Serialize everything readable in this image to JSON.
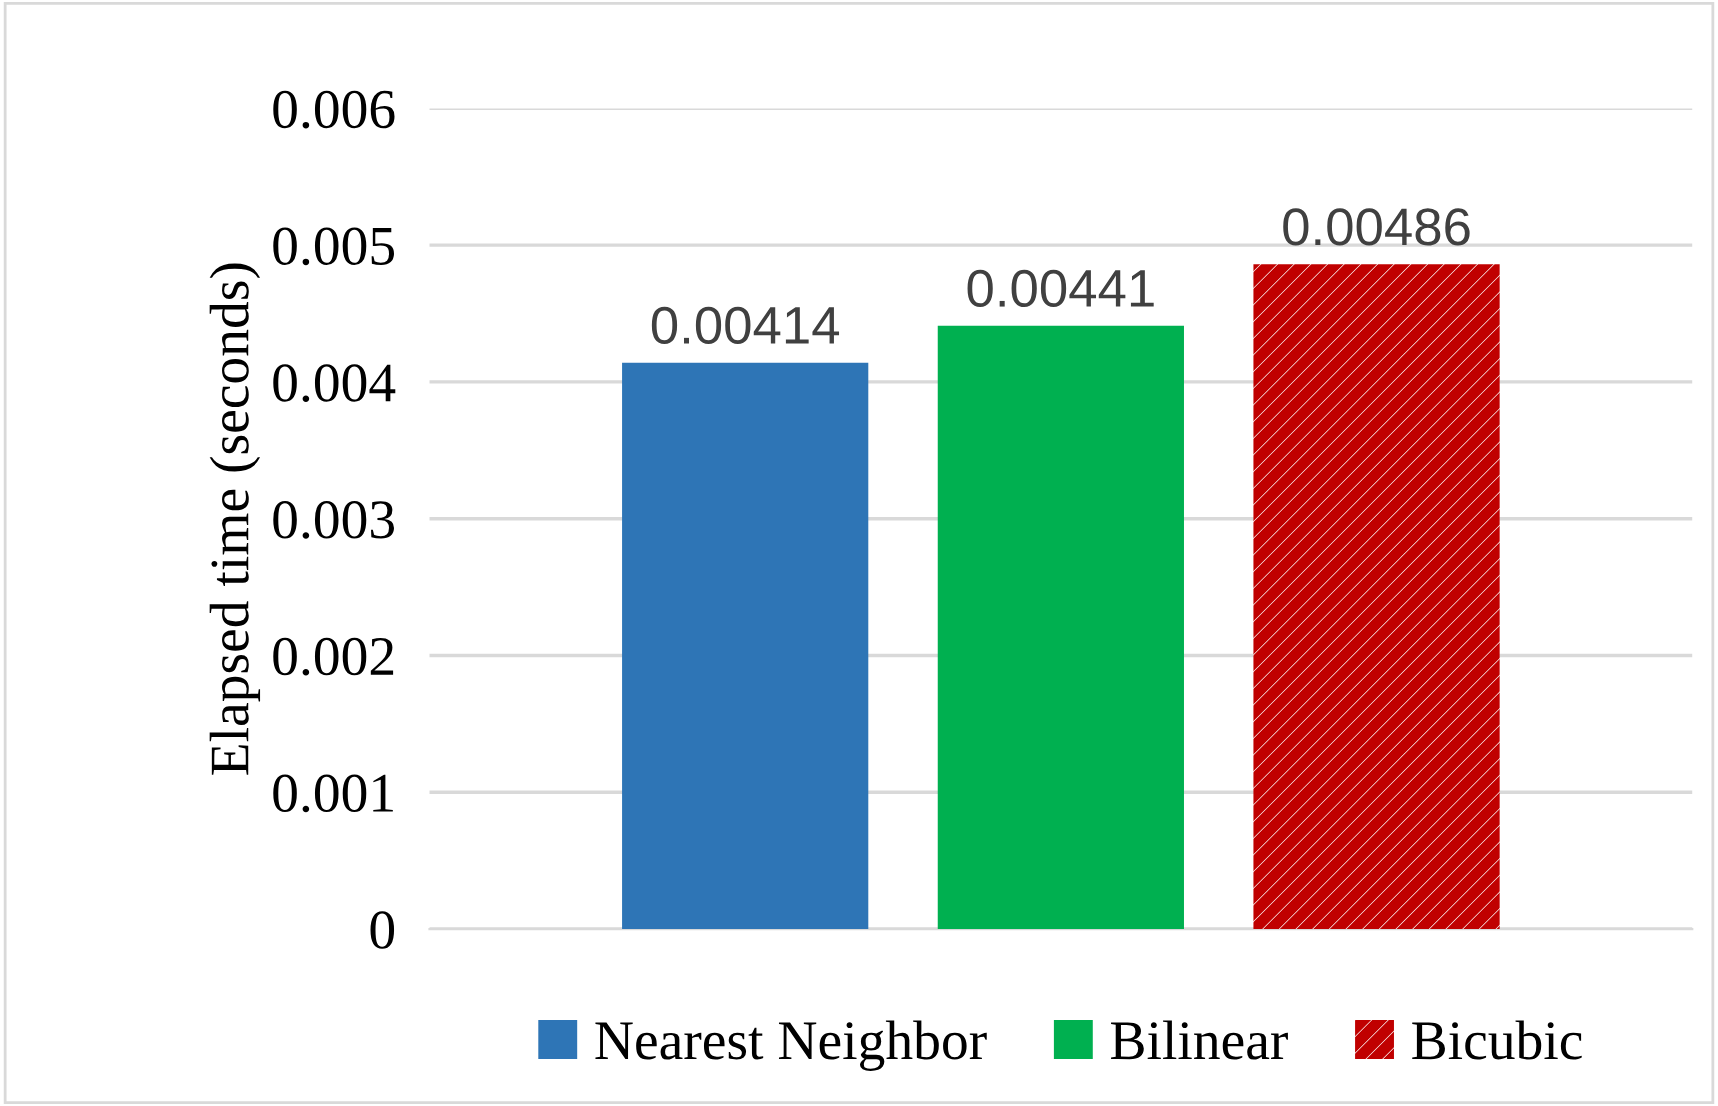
{
  "chart_data": {
    "type": "bar",
    "ylabel": "Elapsed time (seconds)",
    "categories": [
      null
    ],
    "series": [
      {
        "name": "Nearest Neighbor",
        "color": "#2e75b6",
        "values": [
          0.00414
        ]
      },
      {
        "name": "Bilinear",
        "color": "#00b050",
        "values": [
          0.00441
        ]
      },
      {
        "name": "Bicubic",
        "color": "#c00000",
        "values": [
          0.00486
        ]
      }
    ],
    "ylim": [
      0,
      0.006
    ],
    "yticks": [
      {
        "value": 0,
        "label": "0"
      },
      0.001,
      0.002,
      0.003,
      0.004,
      0.005,
      0.006
    ],
    "grid": "y",
    "legend": "bottom",
    "data_labels": true
  }
}
